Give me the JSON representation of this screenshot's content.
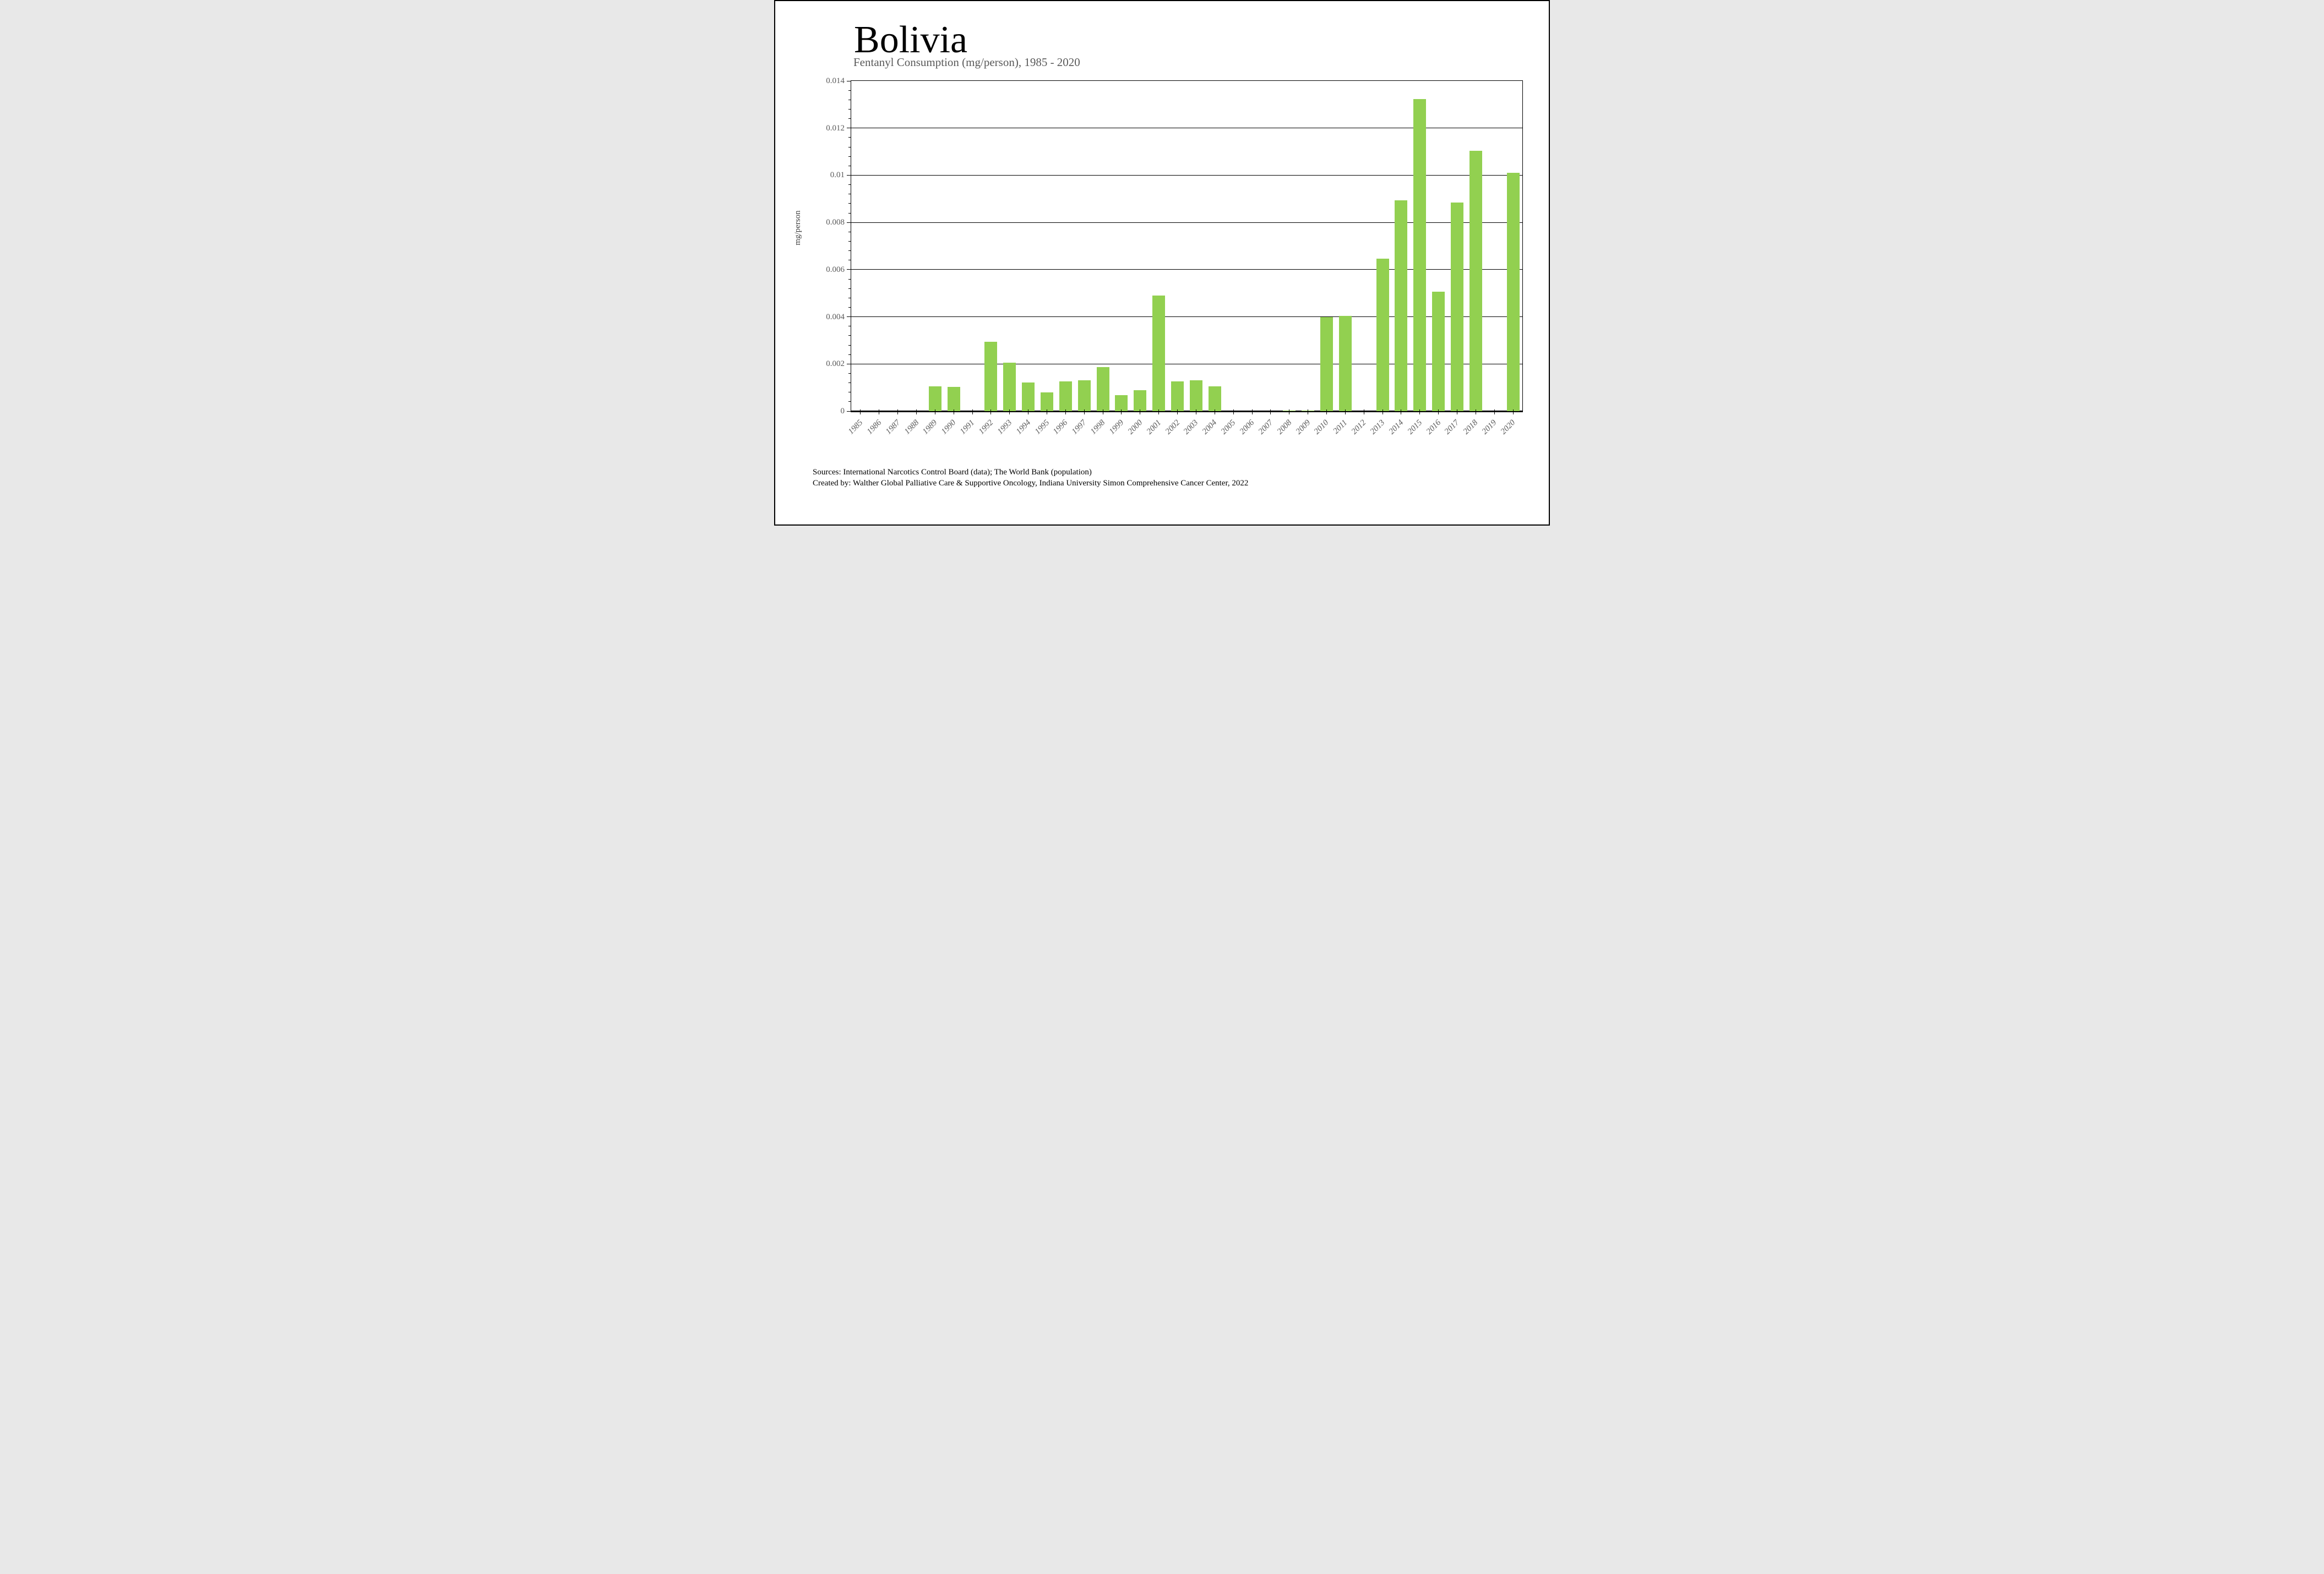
{
  "title": "Bolivia",
  "subtitle": "Fentanyl Consumption (mg/person), 1985 - 2020",
  "y_axis": {
    "label": "mg/person",
    "tick_labels_top_to_bottom": [
      "0.014",
      "0.012",
      "0.01",
      "0.008",
      "0.006",
      "0.004",
      "0.002",
      "0"
    ]
  },
  "footer": {
    "sources_line": "Sources: International Narcotics Control Board (data); The World Bank (population)",
    "credit_line": "Created by: Walther Global Palliative Care & Supportive Oncology, Indiana University Simon Comprehensive Cancer Center, 2022"
  },
  "colors": {
    "bar": "#92D050",
    "muted_text": "#595959",
    "axis": "#000000"
  },
  "chart_data": {
    "type": "bar",
    "title": "Bolivia",
    "subtitle": "Fentanyl Consumption (mg/person), 1985 - 2020",
    "xlabel": "",
    "ylabel": "mg/person",
    "ylim": [
      0,
      0.014
    ],
    "gridline_step": 0.002,
    "minor_ticks_per_interval": 4,
    "grid": true,
    "legend": false,
    "categories": [
      1985,
      1986,
      1987,
      1988,
      1989,
      1990,
      1991,
      1992,
      1993,
      1994,
      1995,
      1996,
      1997,
      1998,
      1999,
      2000,
      2001,
      2002,
      2003,
      2004,
      2005,
      2006,
      2007,
      2008,
      2009,
      2010,
      2011,
      2012,
      2013,
      2014,
      2015,
      2016,
      2017,
      2018,
      2019,
      2020
    ],
    "values": [
      0,
      0,
      0,
      0,
      0.00104,
      0.00102,
      0,
      0.00294,
      0.00205,
      0.00121,
      0.00079,
      0.00126,
      0.00131,
      0.00186,
      0.00067,
      0.00088,
      0.00491,
      0.00125,
      0.00131,
      0.00105,
      0,
      0,
      0,
      1e-05,
      1e-05,
      0.00399,
      0.00404,
      0,
      0.00646,
      0.00893,
      0.01324,
      0.00506,
      0.00885,
      0.01103,
      0,
      0.0101
    ]
  }
}
